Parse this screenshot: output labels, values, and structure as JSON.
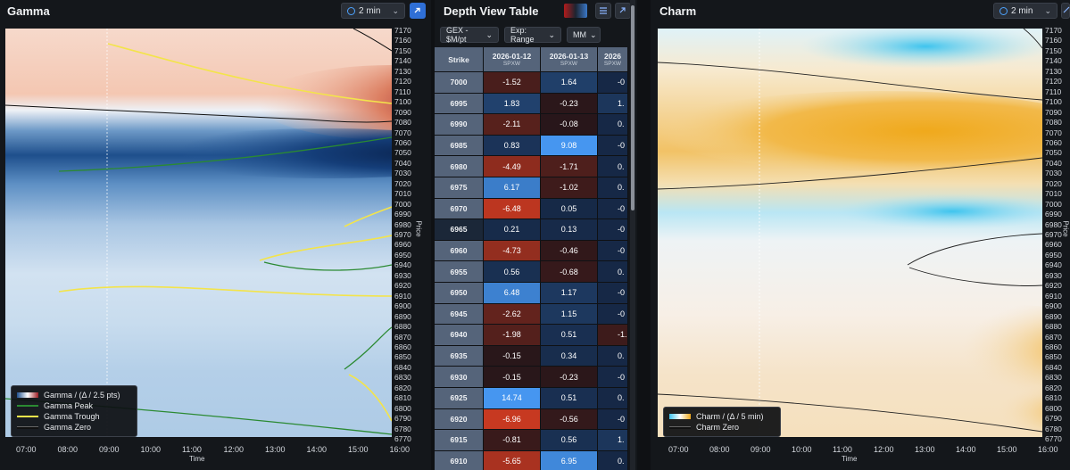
{
  "gamma_panel": {
    "title": "Gamma",
    "interval": "2 min",
    "price_ticks": [
      "7170",
      "7160",
      "7150",
      "7140",
      "7130",
      "7120",
      "7110",
      "7100",
      "7090",
      "7080",
      "7070",
      "7060",
      "7050",
      "7040",
      "7030",
      "7020",
      "7010",
      "7000",
      "6990",
      "6980",
      "6970",
      "6960",
      "6950",
      "6940",
      "6930",
      "6920",
      "6910",
      "6900",
      "6890",
      "6880",
      "6870",
      "6860",
      "6850",
      "6840",
      "6830",
      "6820",
      "6810",
      "6800",
      "6790",
      "6780",
      "6770"
    ],
    "time_ticks": [
      "07:00",
      "08:00",
      "09:00",
      "10:00",
      "11:00",
      "12:00",
      "13:00",
      "14:00",
      "15:00",
      "16:00"
    ],
    "time_label": "Time",
    "price_label": "Price",
    "legend": [
      "Gamma / (Δ / 2.5 pts)",
      "Gamma Peak",
      "Gamma Trough",
      "Gamma Zero"
    ]
  },
  "table_panel": {
    "title": "Depth View Table",
    "dropdowns": [
      "GEX - $M/pt",
      "Exp: Range",
      "MM"
    ],
    "strike_header": "Strike",
    "columns": [
      {
        "date": "2026-01-12",
        "sub": "SPXW"
      },
      {
        "date": "2026-01-13",
        "sub": "SPXW"
      },
      {
        "date": "2026",
        "sub": "SPXW"
      }
    ],
    "rows": [
      {
        "strike": "7000",
        "v1": "-1.52",
        "v2": "1.64",
        "v3": "-0"
      },
      {
        "strike": "6995",
        "v1": "1.83",
        "v2": "-0.23",
        "v3": "1."
      },
      {
        "strike": "6990",
        "v1": "-2.11",
        "v2": "-0.08",
        "v3": "0."
      },
      {
        "strike": "6985",
        "v1": "0.83",
        "v2": "9.08",
        "v3": "-0"
      },
      {
        "strike": "6980",
        "v1": "-4.49",
        "v2": "-1.71",
        "v3": "0."
      },
      {
        "strike": "6975",
        "v1": "6.17",
        "v2": "-1.02",
        "v3": "0."
      },
      {
        "strike": "6970",
        "v1": "-6.48",
        "v2": "0.05",
        "v3": "-0"
      },
      {
        "strike": "6965",
        "v1": "0.21",
        "v2": "0.13",
        "v3": "-0"
      },
      {
        "strike": "6960",
        "v1": "-4.73",
        "v2": "-0.46",
        "v3": "-0"
      },
      {
        "strike": "6955",
        "v1": "0.56",
        "v2": "-0.68",
        "v3": "0."
      },
      {
        "strike": "6950",
        "v1": "6.48",
        "v2": "1.17",
        "v3": "-0"
      },
      {
        "strike": "6945",
        "v1": "-2.62",
        "v2": "1.15",
        "v3": "-0"
      },
      {
        "strike": "6940",
        "v1": "-1.98",
        "v2": "0.51",
        "v3": "-1."
      },
      {
        "strike": "6935",
        "v1": "-0.15",
        "v2": "0.34",
        "v3": "0."
      },
      {
        "strike": "6930",
        "v1": "-0.15",
        "v2": "-0.23",
        "v3": "-0"
      },
      {
        "strike": "6925",
        "v1": "14.74",
        "v2": "0.51",
        "v3": "0."
      },
      {
        "strike": "6920",
        "v1": "-6.96",
        "v2": "-0.56",
        "v3": "-0"
      },
      {
        "strike": "6915",
        "v1": "-0.81",
        "v2": "0.56",
        "v3": "1."
      },
      {
        "strike": "6910",
        "v1": "-5.65",
        "v2": "6.95",
        "v3": "0."
      }
    ]
  },
  "charm_panel": {
    "title": "Charm",
    "interval": "2 min",
    "time_ticks": [
      "07:00",
      "08:00",
      "09:00",
      "10:00",
      "11:00",
      "12:00",
      "13:00",
      "14:00",
      "15:00",
      "16:00"
    ],
    "time_label": "Time",
    "price_label": "Price",
    "price_ticks": [
      "7170",
      "7160",
      "7150",
      "7140",
      "7130",
      "7120",
      "7110",
      "7100",
      "7090",
      "7080",
      "7070",
      "7060",
      "7050",
      "7040",
      "7030",
      "7020",
      "7010",
      "7000",
      "6990",
      "6980",
      "6970",
      "6960",
      "6950",
      "6940",
      "6930",
      "6920",
      "6910",
      "6900",
      "6890",
      "6880",
      "6870",
      "6860",
      "6850",
      "6840",
      "6830",
      "6820",
      "6810",
      "6800",
      "6790",
      "6780",
      "6770"
    ],
    "legend": [
      "Charm / (Δ / 5 min)",
      "Charm Zero"
    ]
  }
}
